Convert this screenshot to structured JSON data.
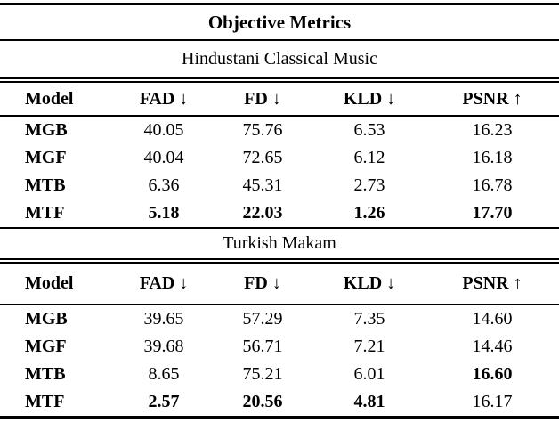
{
  "table": {
    "title": "Objective Metrics",
    "columns": [
      "Model",
      "FAD ↓",
      "FD ↓",
      "KLD ↓",
      "PSNR ↑"
    ],
    "sections": [
      {
        "name": "Hindustani Classical Music",
        "rows": [
          {
            "model": "MGB",
            "values": [
              "40.05",
              "75.76",
              "6.53",
              "16.23"
            ],
            "bold": [
              false,
              false,
              false,
              false
            ]
          },
          {
            "model": "MGF",
            "values": [
              "40.04",
              "72.65",
              "6.12",
              "16.18"
            ],
            "bold": [
              false,
              false,
              false,
              false
            ]
          },
          {
            "model": "MTB",
            "values": [
              "6.36",
              "45.31",
              "2.73",
              "16.78"
            ],
            "bold": [
              false,
              false,
              false,
              false
            ]
          },
          {
            "model": "MTF",
            "values": [
              "5.18",
              "22.03",
              "1.26",
              "17.70"
            ],
            "bold": [
              true,
              true,
              true,
              true
            ]
          }
        ]
      },
      {
        "name": "Turkish Makam",
        "rows": [
          {
            "model": "MGB",
            "values": [
              "39.65",
              "57.29",
              "7.35",
              "14.60"
            ],
            "bold": [
              false,
              false,
              false,
              false
            ]
          },
          {
            "model": "MGF",
            "values": [
              "39.68",
              "56.71",
              "7.21",
              "14.46"
            ],
            "bold": [
              false,
              false,
              false,
              false
            ]
          },
          {
            "model": "MTB",
            "values": [
              "8.65",
              "75.21",
              "6.01",
              "16.60"
            ],
            "bold": [
              false,
              false,
              false,
              true
            ]
          },
          {
            "model": "MTF",
            "values": [
              "2.57",
              "20.56",
              "4.81",
              "16.17"
            ],
            "bold": [
              true,
              true,
              true,
              false
            ]
          }
        ]
      }
    ],
    "colors": {
      "text": "#000000",
      "background": "#ffffff",
      "rule": "#000000"
    }
  }
}
